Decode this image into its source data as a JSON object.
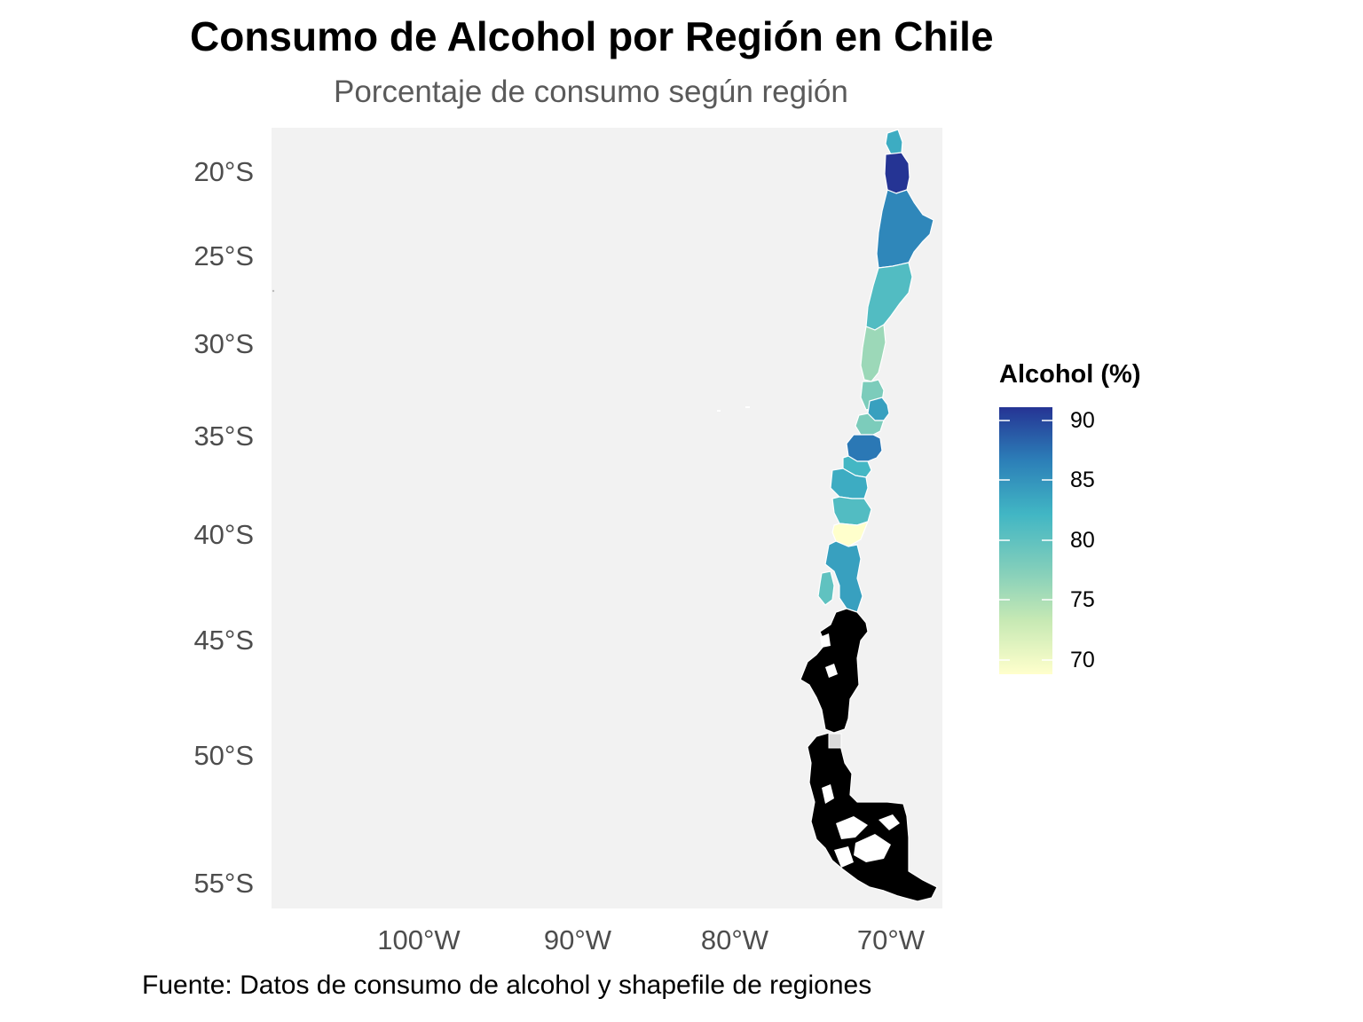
{
  "title": "Consumo de Alcohol por Región en Chile",
  "subtitle": "Porcentaje de consumo según región",
  "caption": "Fuente: Datos de consumo de alcohol y shapefile de regiones",
  "legend": {
    "title": "Alcohol (%)",
    "labels": [
      "90",
      "85",
      "80",
      "75",
      "70"
    ],
    "gradient_colors": [
      "#253494",
      "#2c7fb8",
      "#41b6c4",
      "#7fcdbb",
      "#c7e9b4",
      "#ffffcc"
    ]
  },
  "axes": {
    "y_labels": [
      "20°S",
      "25°S",
      "30°S",
      "35°S",
      "40°S",
      "45°S",
      "50°S",
      "55°S"
    ],
    "x_labels": [
      "100°W",
      "90°W",
      "80°W",
      "70°W"
    ],
    "panel_background": "#f2f2f2"
  },
  "chart_data": {
    "type": "choropleth",
    "fill_variable": "Alcohol (%)",
    "color_range": [
      69,
      91
    ],
    "regions": [
      {
        "value": 83
      },
      {
        "value": 91
      },
      {
        "value": 86
      },
      {
        "value": 81
      },
      {
        "value": 76
      },
      {
        "value": 78
      },
      {
        "value": 84
      },
      {
        "value": 78
      },
      {
        "value": 87
      },
      {
        "value": 82
      },
      {
        "value": 83
      },
      {
        "value": 81
      },
      {
        "value": 69
      },
      {
        "value": 84
      },
      {
        "value": 80
      }
    ]
  }
}
